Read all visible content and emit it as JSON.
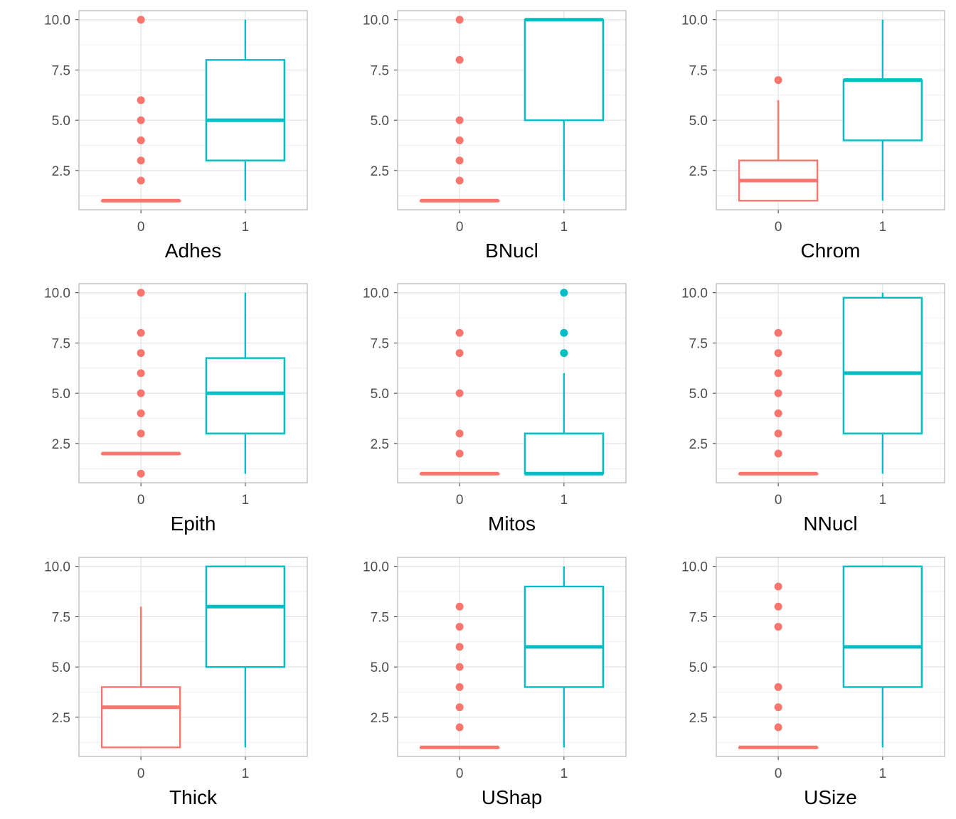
{
  "colors": {
    "group_0": "#F8766D",
    "group_1": "#00BFC4",
    "grid": "#e3e3e3",
    "panel_border": "#b3b3b3"
  },
  "chart_data": [
    {
      "type": "boxplot",
      "xlabel": "Adhes",
      "categories": [
        "0",
        "1"
      ],
      "ylim": [
        0.55,
        10.45
      ],
      "yticks": [
        "2.5",
        "5.0",
        "7.5",
        "10.0"
      ],
      "grid": true,
      "boxes": [
        {
          "category": "0",
          "min": 1,
          "q1": 1,
          "median": 1,
          "q3": 1,
          "max": 1,
          "outliers": [
            2,
            3,
            4,
            5,
            6,
            10
          ]
        },
        {
          "category": "1",
          "min": 1,
          "q1": 3,
          "median": 5,
          "q3": 8,
          "max": 10,
          "outliers": []
        }
      ]
    },
    {
      "type": "boxplot",
      "xlabel": "BNucl",
      "categories": [
        "0",
        "1"
      ],
      "ylim": [
        0.55,
        10.45
      ],
      "yticks": [
        "2.5",
        "5.0",
        "7.5",
        "10.0"
      ],
      "grid": true,
      "boxes": [
        {
          "category": "0",
          "min": 1,
          "q1": 1,
          "median": 1,
          "q3": 1,
          "max": 1,
          "outliers": [
            2,
            3,
            4,
            5,
            8,
            10
          ]
        },
        {
          "category": "1",
          "min": 1,
          "q1": 5,
          "median": 10,
          "q3": 10,
          "max": 10,
          "outliers": []
        }
      ]
    },
    {
      "type": "boxplot",
      "xlabel": "Chrom",
      "categories": [
        "0",
        "1"
      ],
      "ylim": [
        0.55,
        10.45
      ],
      "yticks": [
        "2.5",
        "5.0",
        "7.5",
        "10.0"
      ],
      "grid": true,
      "boxes": [
        {
          "category": "0",
          "min": 1,
          "q1": 1,
          "median": 2,
          "q3": 3,
          "max": 6,
          "outliers": [
            7
          ]
        },
        {
          "category": "1",
          "min": 1,
          "q1": 4,
          "median": 7,
          "q3": 7,
          "max": 10,
          "outliers": []
        }
      ]
    },
    {
      "type": "boxplot",
      "xlabel": "Epith",
      "categories": [
        "0",
        "1"
      ],
      "ylim": [
        0.55,
        10.45
      ],
      "yticks": [
        "2.5",
        "5.0",
        "7.5",
        "10.0"
      ],
      "grid": true,
      "boxes": [
        {
          "category": "0",
          "min": 2,
          "q1": 2,
          "median": 2,
          "q3": 2,
          "max": 2,
          "outliers": [
            1,
            3,
            4,
            5,
            6,
            7,
            8,
            10
          ]
        },
        {
          "category": "1",
          "min": 1,
          "q1": 3,
          "median": 5,
          "q3": 6.75,
          "max": 10,
          "outliers": []
        }
      ]
    },
    {
      "type": "boxplot",
      "xlabel": "Mitos",
      "categories": [
        "0",
        "1"
      ],
      "ylim": [
        0.55,
        10.45
      ],
      "yticks": [
        "2.5",
        "5.0",
        "7.5",
        "10.0"
      ],
      "grid": true,
      "boxes": [
        {
          "category": "0",
          "min": 1,
          "q1": 1,
          "median": 1,
          "q3": 1,
          "max": 1,
          "outliers": [
            2,
            3,
            5,
            7,
            8
          ]
        },
        {
          "category": "1",
          "min": 1,
          "q1": 1,
          "median": 1,
          "q3": 3,
          "max": 6,
          "outliers": [
            7,
            8,
            10
          ]
        }
      ]
    },
    {
      "type": "boxplot",
      "xlabel": "NNucl",
      "categories": [
        "0",
        "1"
      ],
      "ylim": [
        0.55,
        10.45
      ],
      "yticks": [
        "2.5",
        "5.0",
        "7.5",
        "10.0"
      ],
      "grid": true,
      "boxes": [
        {
          "category": "0",
          "min": 1,
          "q1": 1,
          "median": 1,
          "q3": 1,
          "max": 1,
          "outliers": [
            2,
            3,
            4,
            5,
            6,
            7,
            8
          ]
        },
        {
          "category": "1",
          "min": 1,
          "q1": 3,
          "median": 6,
          "q3": 9.75,
          "max": 10,
          "outliers": []
        }
      ]
    },
    {
      "type": "boxplot",
      "xlabel": "Thick",
      "categories": [
        "0",
        "1"
      ],
      "ylim": [
        0.55,
        10.45
      ],
      "yticks": [
        "2.5",
        "5.0",
        "7.5",
        "10.0"
      ],
      "grid": true,
      "boxes": [
        {
          "category": "0",
          "min": 1,
          "q1": 1,
          "median": 3,
          "q3": 4,
          "max": 8,
          "outliers": []
        },
        {
          "category": "1",
          "min": 1,
          "q1": 5,
          "median": 8,
          "q3": 10,
          "max": 10,
          "outliers": []
        }
      ]
    },
    {
      "type": "boxplot",
      "xlabel": "UShap",
      "categories": [
        "0",
        "1"
      ],
      "ylim": [
        0.55,
        10.45
      ],
      "yticks": [
        "2.5",
        "5.0",
        "7.5",
        "10.0"
      ],
      "grid": true,
      "boxes": [
        {
          "category": "0",
          "min": 1,
          "q1": 1,
          "median": 1,
          "q3": 1,
          "max": 1,
          "outliers": [
            2,
            3,
            4,
            5,
            6,
            7,
            8
          ]
        },
        {
          "category": "1",
          "min": 1,
          "q1": 4,
          "median": 6,
          "q3": 9,
          "max": 10,
          "outliers": []
        }
      ]
    },
    {
      "type": "boxplot",
      "xlabel": "USize",
      "categories": [
        "0",
        "1"
      ],
      "ylim": [
        0.55,
        10.45
      ],
      "yticks": [
        "2.5",
        "5.0",
        "7.5",
        "10.0"
      ],
      "grid": true,
      "boxes": [
        {
          "category": "0",
          "min": 1,
          "q1": 1,
          "median": 1,
          "q3": 1,
          "max": 1,
          "outliers": [
            2,
            3,
            4,
            7,
            8,
            9
          ]
        },
        {
          "category": "1",
          "min": 1,
          "q1": 4,
          "median": 6,
          "q3": 10,
          "max": 10,
          "outliers": []
        }
      ]
    }
  ]
}
